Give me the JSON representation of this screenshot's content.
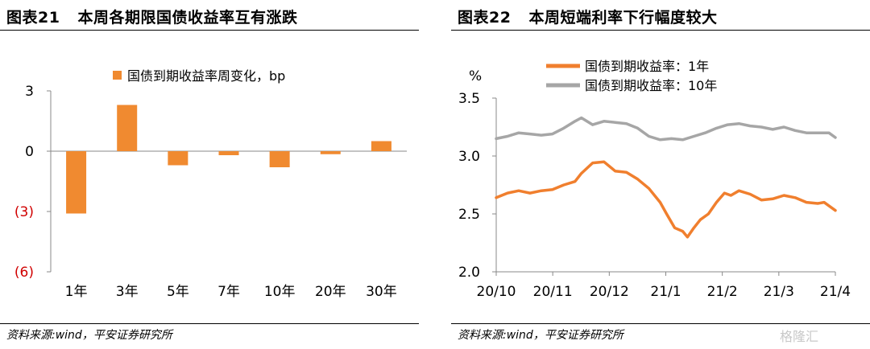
{
  "left": {
    "title_num": "图表21",
    "title_text": "本周各期限国债收益率互有涨跌",
    "source": "资料来源:wind，平安证券研究所"
  },
  "right": {
    "title_num": "图表22",
    "title_text": "本周短端利率下行幅度较大",
    "source": "资料来源:wind，平安证券研究所"
  },
  "watermark": "格隆汇",
  "chart_data": [
    {
      "type": "bar",
      "legend": "国债到期收益率周变化，bp",
      "categories": [
        "1年",
        "3年",
        "5年",
        "7年",
        "10年",
        "20年",
        "30年"
      ],
      "values": [
        -3.1,
        2.3,
        -0.7,
        -0.2,
        -0.8,
        -0.15,
        0.5
      ],
      "ylim": [
        -6,
        3
      ],
      "yticks": [
        3,
        0,
        -3,
        -6
      ],
      "ytick_labels": [
        "3",
        "0",
        "(3)",
        "(6)"
      ],
      "negative_label_color": "#d00000",
      "color": "#f08a30"
    },
    {
      "type": "line",
      "ylabel": "%",
      "ylim": [
        2.0,
        3.5
      ],
      "yticks": [
        2.0,
        2.5,
        3.0,
        3.5
      ],
      "ytick_labels": [
        "2.0",
        "2.5",
        "3.0",
        "3.5"
      ],
      "xticks": [
        "20/10",
        "20/11",
        "20/12",
        "21/1",
        "21/2",
        "21/3",
        "21/4"
      ],
      "x_start": "2020-10-01",
      "x_end": "2021-04-30",
      "legend_position": "top",
      "series": [
        {
          "name": "国债到期收益率：1年",
          "color": "#f07f2e",
          "points": [
            [
              "2020-10-01",
              2.64
            ],
            [
              "2020-10-08",
              2.68
            ],
            [
              "2020-10-15",
              2.7
            ],
            [
              "2020-10-22",
              2.68
            ],
            [
              "2020-10-29",
              2.7
            ],
            [
              "2020-11-05",
              2.71
            ],
            [
              "2020-11-12",
              2.75
            ],
            [
              "2020-11-19",
              2.78
            ],
            [
              "2020-11-23",
              2.85
            ],
            [
              "2020-11-30",
              2.94
            ],
            [
              "2020-12-07",
              2.95
            ],
            [
              "2020-12-14",
              2.87
            ],
            [
              "2020-12-21",
              2.86
            ],
            [
              "2020-12-28",
              2.8
            ],
            [
              "2021-01-04",
              2.72
            ],
            [
              "2021-01-11",
              2.6
            ],
            [
              "2021-01-15",
              2.5
            ],
            [
              "2021-01-20",
              2.38
            ],
            [
              "2021-01-25",
              2.35
            ],
            [
              "2021-01-28",
              2.3
            ],
            [
              "2021-02-01",
              2.38
            ],
            [
              "2021-02-05",
              2.45
            ],
            [
              "2021-02-10",
              2.5
            ],
            [
              "2021-02-15",
              2.6
            ],
            [
              "2021-02-20",
              2.68
            ],
            [
              "2021-02-24",
              2.66
            ],
            [
              "2021-03-01",
              2.7
            ],
            [
              "2021-03-08",
              2.67
            ],
            [
              "2021-03-15",
              2.62
            ],
            [
              "2021-03-22",
              2.63
            ],
            [
              "2021-03-29",
              2.66
            ],
            [
              "2021-04-05",
              2.64
            ],
            [
              "2021-04-12",
              2.6
            ],
            [
              "2021-04-19",
              2.59
            ],
            [
              "2021-04-23",
              2.6
            ],
            [
              "2021-04-30",
              2.53
            ]
          ]
        },
        {
          "name": "国债到期收益率：10年",
          "color": "#a6a6a6",
          "points": [
            [
              "2020-10-01",
              3.15
            ],
            [
              "2020-10-08",
              3.17
            ],
            [
              "2020-10-15",
              3.2
            ],
            [
              "2020-10-22",
              3.19
            ],
            [
              "2020-10-29",
              3.18
            ],
            [
              "2020-11-05",
              3.19
            ],
            [
              "2020-11-12",
              3.24
            ],
            [
              "2020-11-19",
              3.3
            ],
            [
              "2020-11-23",
              3.33
            ],
            [
              "2020-11-30",
              3.27
            ],
            [
              "2020-12-07",
              3.3
            ],
            [
              "2020-12-14",
              3.29
            ],
            [
              "2020-12-21",
              3.28
            ],
            [
              "2020-12-28",
              3.24
            ],
            [
              "2021-01-04",
              3.17
            ],
            [
              "2021-01-11",
              3.14
            ],
            [
              "2021-01-18",
              3.15
            ],
            [
              "2021-01-25",
              3.14
            ],
            [
              "2021-02-01",
              3.17
            ],
            [
              "2021-02-08",
              3.2
            ],
            [
              "2021-02-15",
              3.24
            ],
            [
              "2021-02-22",
              3.27
            ],
            [
              "2021-03-01",
              3.28
            ],
            [
              "2021-03-08",
              3.26
            ],
            [
              "2021-03-15",
              3.25
            ],
            [
              "2021-03-22",
              3.23
            ],
            [
              "2021-03-29",
              3.25
            ],
            [
              "2021-04-05",
              3.22
            ],
            [
              "2021-04-12",
              3.2
            ],
            [
              "2021-04-19",
              3.2
            ],
            [
              "2021-04-26",
              3.2
            ],
            [
              "2021-04-30",
              3.16
            ]
          ]
        }
      ]
    }
  ]
}
